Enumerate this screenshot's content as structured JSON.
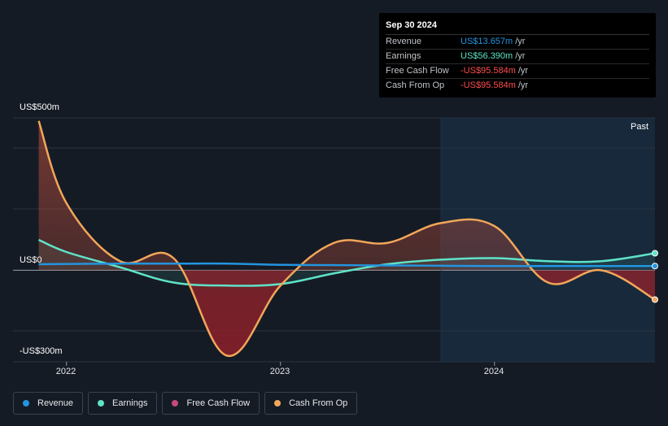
{
  "tooltip": {
    "date": "Sep 30 2024",
    "rows": [
      {
        "label": "Revenue",
        "value": "US$13.657m",
        "unit": "/yr",
        "color": "#2394df"
      },
      {
        "label": "Earnings",
        "value": "US$56.390m",
        "unit": "/yr",
        "color": "#5fe3c8"
      },
      {
        "label": "Free Cash Flow",
        "value": "-US$95.584m",
        "unit": "/yr",
        "color": "#ff4d4d"
      },
      {
        "label": "Cash From Op",
        "value": "-US$95.584m",
        "unit": "/yr",
        "color": "#ff4d4d"
      }
    ]
  },
  "past_label": "Past",
  "legend": [
    {
      "label": "Revenue",
      "color": "#2394df"
    },
    {
      "label": "Earnings",
      "color": "#5fe3c8"
    },
    {
      "label": "Free Cash Flow",
      "color": "#c64a7a"
    },
    {
      "label": "Cash From Op",
      "color": "#f2a65a"
    }
  ],
  "chart_data": {
    "type": "line",
    "y_axis_labels": {
      "top": "US$500m",
      "zero": "US$0",
      "bottom": "-US$300m"
    },
    "ylim": [
      -300,
      500
    ],
    "x_tick_labels": [
      "2022",
      "2023",
      "2024"
    ],
    "x_ticks": [
      2022.0,
      2023.0,
      2024.0
    ],
    "xlim": [
      2021.75,
      2024.75
    ],
    "forecast_start": 2023.75,
    "series": [
      {
        "name": "Revenue",
        "color": "#2394df",
        "x": [
          2021.87,
          2022.25,
          2022.5,
          2022.75,
          2023.0,
          2023.25,
          2023.5,
          2023.75,
          2024.0,
          2024.25,
          2024.5,
          2024.75
        ],
        "y": [
          20,
          22,
          22,
          22,
          18,
          17,
          16,
          15,
          14,
          14,
          14,
          14
        ]
      },
      {
        "name": "Earnings",
        "color": "#5fe3c8",
        "x": [
          2021.87,
          2022.0,
          2022.25,
          2022.5,
          2022.75,
          2023.0,
          2023.25,
          2023.5,
          2023.75,
          2024.0,
          2024.25,
          2024.5,
          2024.75
        ],
        "y": [
          100,
          60,
          10,
          -40,
          -50,
          -45,
          -10,
          20,
          35,
          40,
          30,
          30,
          56
        ]
      },
      {
        "name": "Free Cash Flow",
        "color": "#c64a7a",
        "x": [
          2021.87,
          2022.0,
          2022.25,
          2022.5,
          2022.75,
          2023.0,
          2023.25,
          2023.5,
          2023.75,
          2024.0,
          2024.25,
          2024.5,
          2024.75
        ],
        "y": [
          490,
          220,
          30,
          40,
          -280,
          -50,
          90,
          90,
          155,
          145,
          -40,
          0,
          -96
        ]
      },
      {
        "name": "Cash From Op",
        "color": "#f2a65a",
        "x": [
          2021.87,
          2022.0,
          2022.25,
          2022.5,
          2022.75,
          2023.0,
          2023.25,
          2023.5,
          2023.75,
          2024.0,
          2024.25,
          2024.5,
          2024.75
        ],
        "y": [
          490,
          220,
          30,
          40,
          -280,
          -50,
          90,
          90,
          155,
          145,
          -40,
          0,
          -96
        ]
      }
    ]
  }
}
